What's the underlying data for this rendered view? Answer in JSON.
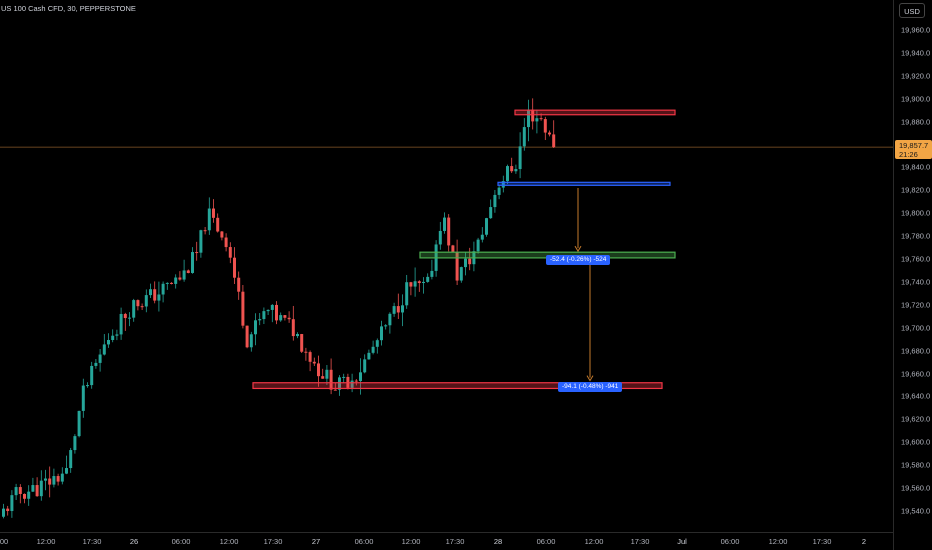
{
  "header": {
    "symbol": "US 100 Cash CFD, 30, PEPPERSTONE",
    "currency": "USD"
  },
  "current_price": {
    "value": "19,857.7",
    "countdown": "21:26",
    "price": 19857.7
  },
  "price_axis": {
    "ticks": [
      "19,960.0",
      "19,940.0",
      "19,920.0",
      "19,900.0",
      "19,880.0",
      "19,860.0",
      "19,840.0",
      "19,820.0",
      "19,800.0",
      "19,780.0",
      "19,760.0",
      "19,740.0",
      "19,720.0",
      "19,700.0",
      "19,680.0",
      "19,660.0",
      "19,640.0",
      "19,620.0",
      "19,600.0",
      "19,580.0",
      "19,560.0",
      "19,540.0"
    ]
  },
  "time_axis": {
    "ticks": [
      "00",
      "12:00",
      "17:30",
      "26",
      "06:00",
      "12:00",
      "17:30",
      "27",
      "06:00",
      "12:00",
      "17:30",
      "28",
      "06:00",
      "12:00",
      "17:30",
      "Jul",
      "06:00",
      "12:00",
      "17:30",
      "2"
    ]
  },
  "zones": [
    {
      "name": "top-resistance-zone",
      "top": 19890,
      "bottom": 19886,
      "color": "#f23645"
    },
    {
      "name": "blue-support-line",
      "top": 19827,
      "bottom": 19825,
      "color": "#2962ff"
    },
    {
      "name": "green-zone",
      "top": 19766,
      "bottom": 19761,
      "color": "#4caf50"
    },
    {
      "name": "lower-red-zone",
      "top": 19652,
      "bottom": 19647,
      "color": "#f23645"
    }
  ],
  "measures": [
    {
      "name": "measure-1",
      "label": "-52.4 (-0.26%) -524",
      "from": 19822,
      "to": 19766
    },
    {
      "name": "measure-2",
      "label": "-94.1 (-0.48%) -941",
      "from": 19760,
      "to": 19653
    }
  ],
  "colors": {
    "up": "#26a69a",
    "down": "#ef5350",
    "background": "#000000",
    "accent": "#f2a545"
  }
}
